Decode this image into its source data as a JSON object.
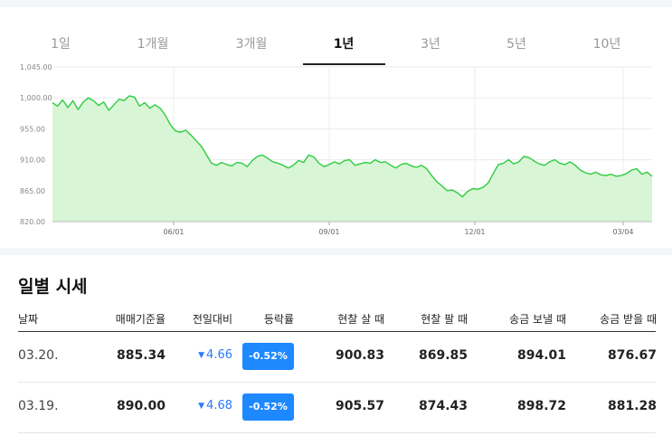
{
  "colors": {
    "line": "#2ecc40",
    "area": "#d8f5d6",
    "accent_blue": "#1e88ff",
    "down_blue": "#2979ff"
  },
  "tabs": [
    {
      "label": "1일",
      "active": false
    },
    {
      "label": "1개월",
      "active": false
    },
    {
      "label": "3개월",
      "active": false
    },
    {
      "label": "1년",
      "active": true
    },
    {
      "label": "3년",
      "active": false
    },
    {
      "label": "5년",
      "active": false
    },
    {
      "label": "10년",
      "active": false
    }
  ],
  "chart_data": {
    "type": "area",
    "title": "",
    "xlabel": "",
    "ylabel": "",
    "ylim": [
      820,
      1045
    ],
    "y_ticks": [
      "1,045.00",
      "1,000.00",
      "955.00",
      "910.00",
      "865.00",
      "820.00"
    ],
    "x_ticks": [
      "06/01",
      "09/01",
      "12/01",
      "03/04"
    ],
    "grid": true,
    "series": [
      {
        "values": [
          993,
          988,
          997,
          986,
          996,
          983,
          994,
          1000,
          996,
          989,
          994,
          982,
          990,
          998,
          996,
          1003,
          1001,
          988,
          993,
          985,
          990,
          985,
          975,
          961,
          952,
          950,
          953,
          946,
          938,
          930,
          918,
          905,
          902,
          906,
          903,
          901,
          906,
          905,
          900,
          909,
          915,
          917,
          912,
          907,
          905,
          902,
          898,
          902,
          909,
          906,
          917,
          914,
          905,
          900,
          903,
          907,
          904,
          909,
          910,
          902,
          904,
          906,
          905,
          910,
          906,
          907,
          902,
          898,
          903,
          905,
          901,
          899,
          902,
          897,
          887,
          878,
          872,
          865,
          866,
          862,
          856,
          864,
          868,
          867,
          870,
          876,
          890,
          903,
          905,
          910,
          904,
          907,
          915,
          913,
          908,
          904,
          902,
          907,
          910,
          905,
          903,
          907,
          902,
          895,
          891,
          889,
          892,
          888,
          887,
          889,
          886,
          887,
          890,
          895,
          897,
          889,
          892,
          886
        ]
      }
    ]
  },
  "table": {
    "title": "일별 시세",
    "headers": [
      "날짜",
      "매매기준율",
      "전일대비",
      "등락률",
      "현찰 살 때",
      "현찰 팔 때",
      "송금 보낼 때",
      "송금 받을 때"
    ],
    "rows": [
      {
        "date": "03.20.",
        "base": "885.34",
        "change": "4.66",
        "rate": "-0.52%",
        "cash_buy": "900.83",
        "cash_sell": "869.85",
        "send": "894.01",
        "receive": "876.67"
      },
      {
        "date": "03.19.",
        "base": "890.00",
        "change": "4.68",
        "rate": "-0.52%",
        "cash_buy": "905.57",
        "cash_sell": "874.43",
        "send": "898.72",
        "receive": "881.28"
      }
    ]
  }
}
